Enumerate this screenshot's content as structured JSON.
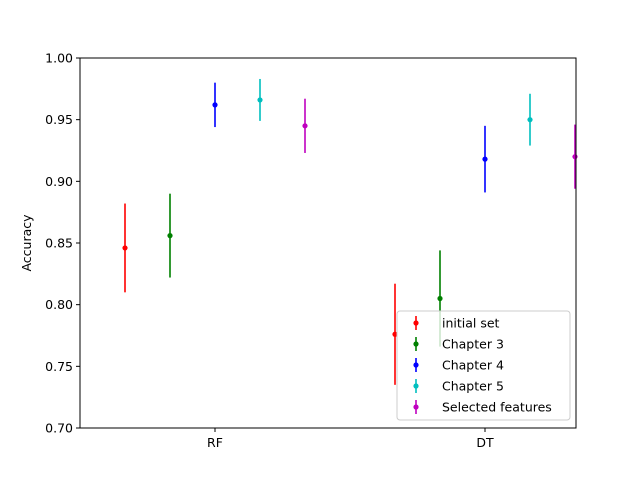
{
  "chart_data": {
    "type": "errorbar",
    "title": "",
    "xlabel": "",
    "ylabel": "Accuracy",
    "ylim": [
      0.7,
      1.0
    ],
    "yticks": [
      "0.70",
      "0.75",
      "0.80",
      "0.85",
      "0.90",
      "0.95",
      "1.00"
    ],
    "categories": [
      "RF",
      "DT"
    ],
    "grid": false,
    "legend": "lower-right",
    "series": [
      {
        "name": "initial set",
        "color": "#ff0000",
        "values": [
          0.846,
          0.776
        ],
        "errors": [
          0.036,
          0.041
        ]
      },
      {
        "name": "Chapter 3",
        "color": "#008000",
        "values": [
          0.856,
          0.805
        ],
        "errors": [
          0.034,
          0.039
        ]
      },
      {
        "name": "Chapter 4",
        "color": "#0000ff",
        "values": [
          0.962,
          0.918
        ],
        "errors": [
          0.018,
          0.027
        ]
      },
      {
        "name": "Chapter 5",
        "color": "#00bfbf",
        "values": [
          0.966,
          0.95
        ],
        "errors": [
          0.017,
          0.021
        ]
      },
      {
        "name": "Selected features",
        "color": "#bf00bf",
        "values": [
          0.945,
          0.92
        ],
        "errors": [
          0.022,
          0.026
        ]
      }
    ]
  }
}
